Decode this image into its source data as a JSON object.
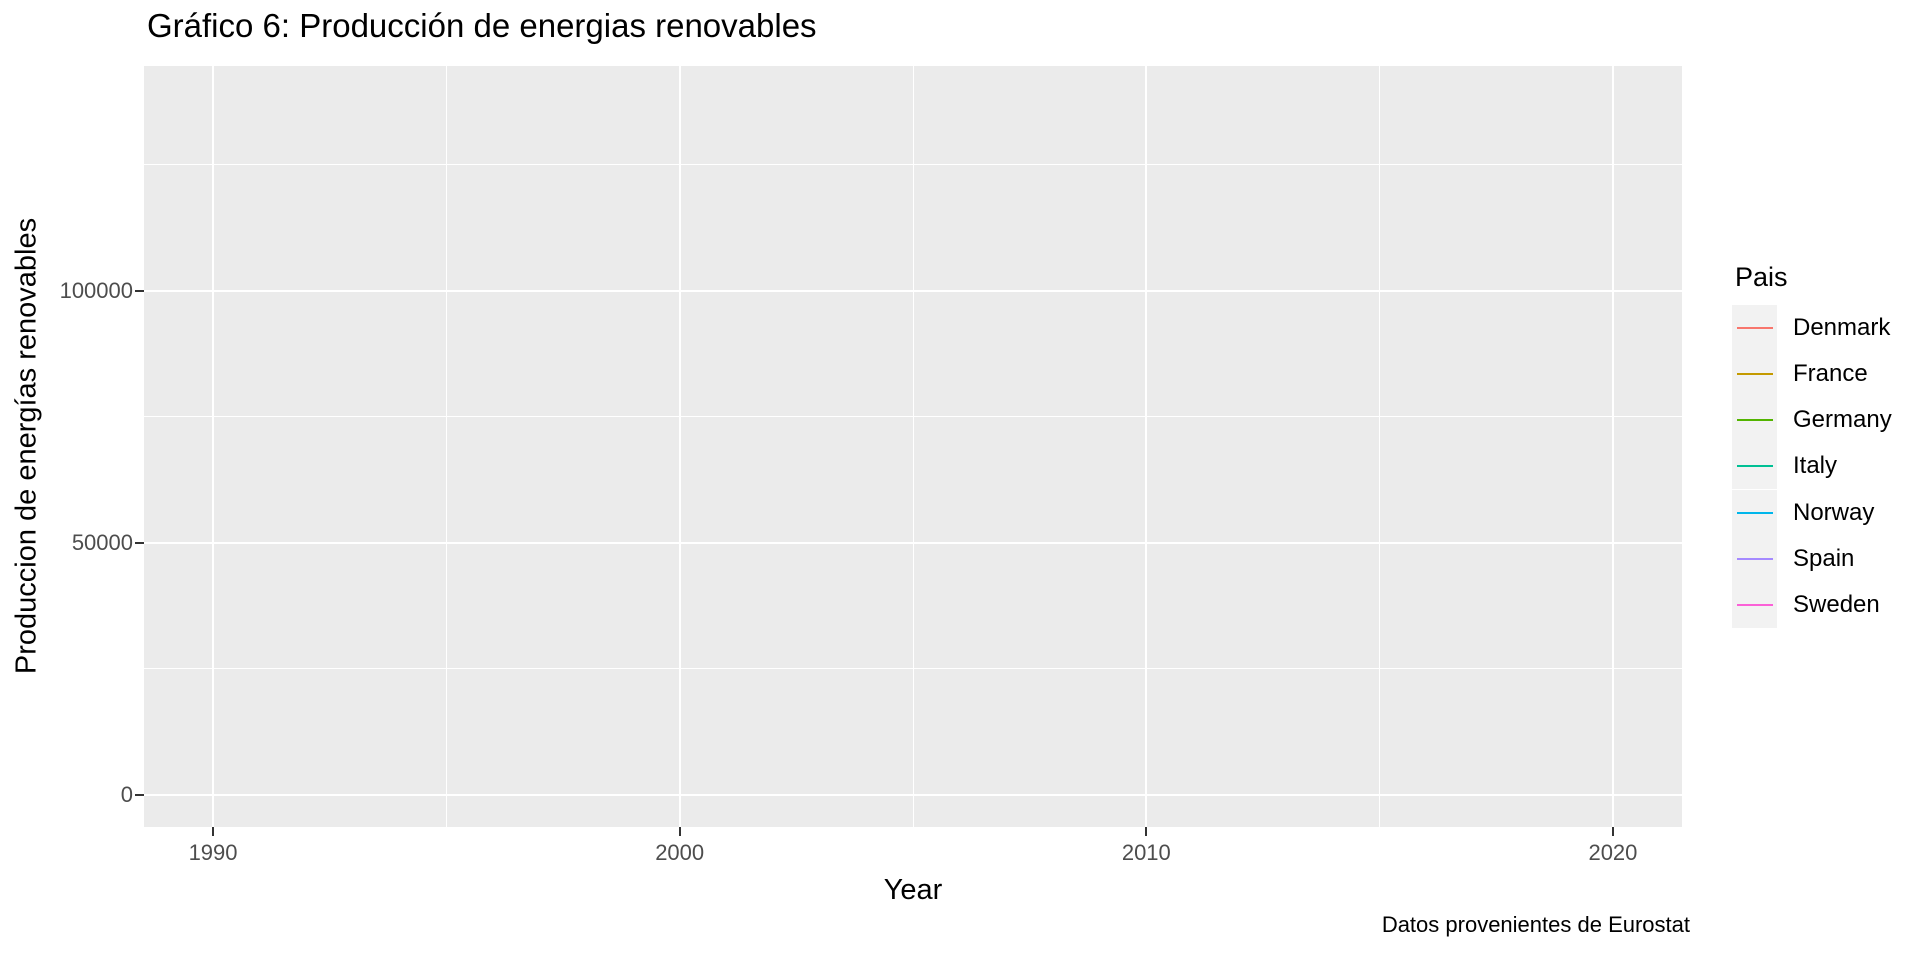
{
  "chart_data": {
    "type": "line",
    "title": "Gráfico 6: Producción de energias renovables",
    "xlabel": "Year",
    "ylabel": "Produccion de energías renovables",
    "caption": "Datos provenientes de Eurostat",
    "grid": true,
    "legend_position": "right",
    "x_axis": {
      "ticks": [
        1990,
        2000,
        2010,
        2020
      ],
      "minor_ticks": [
        1995,
        2005,
        2015
      ],
      "range": [
        1988.52,
        2021.48
      ]
    },
    "y_axis": {
      "ticks": [
        0,
        50000,
        100000
      ],
      "minor_ticks": [
        25000,
        75000,
        125000
      ],
      "range": [
        -6400,
        144600
      ]
    },
    "legend": {
      "title": "Pais",
      "entries": [
        {
          "label": "Denmark",
          "color": "#F8766D"
        },
        {
          "label": "France",
          "color": "#C49A00"
        },
        {
          "label": "Germany",
          "color": "#53B400"
        },
        {
          "label": "Italy",
          "color": "#00C094"
        },
        {
          "label": "Norway",
          "color": "#00B6EB"
        },
        {
          "label": "Spain",
          "color": "#A58AFF"
        },
        {
          "label": "Sweden",
          "color": "#FB61D7"
        }
      ]
    },
    "series": [
      {
        "name": "Denmark",
        "color": "#F8766D",
        "values": []
      },
      {
        "name": "France",
        "color": "#C49A00",
        "values": []
      },
      {
        "name": "Germany",
        "color": "#53B400",
        "values": []
      },
      {
        "name": "Italy",
        "color": "#00C094",
        "values": []
      },
      {
        "name": "Norway",
        "color": "#00B6EB",
        "values": []
      },
      {
        "name": "Spain",
        "color": "#A58AFF",
        "values": []
      },
      {
        "name": "Sweden",
        "color": "#FB61D7",
        "values": []
      }
    ],
    "plot_area_empty": true
  },
  "theme": {
    "figure_background": "#FFFFFF",
    "panel_background": "#EBEBEB",
    "grid_color": "#FFFFFF",
    "tick_label_color": "#4D4D4D",
    "tick_mark_color": "#333333",
    "legend_key_background": "#F2F2F2",
    "text_color": "#000000"
  }
}
